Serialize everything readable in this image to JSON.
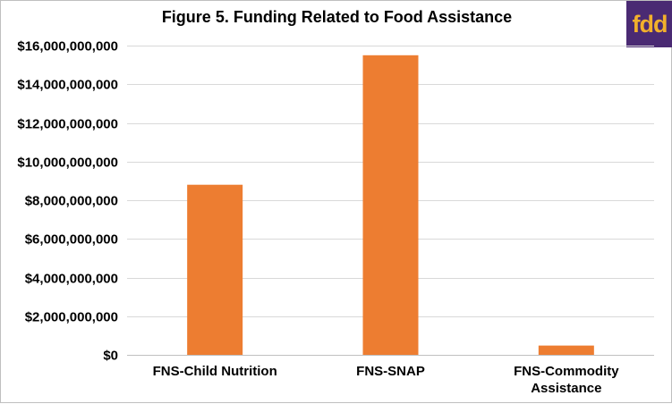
{
  "logo": {
    "text": "fdd"
  },
  "chart_data": {
    "type": "bar",
    "title": "Figure 5. Funding Related to Food Assistance",
    "categories": [
      [
        "FNS-Child Nutrition"
      ],
      [
        "FNS-SNAP"
      ],
      [
        "FNS-Commodity",
        "Assistance"
      ]
    ],
    "values": [
      8800000000,
      15500000000,
      480000000
    ],
    "ylim": [
      0,
      16000000000
    ],
    "yticks": [
      "$0",
      "$2,000,000,000",
      "$4,000,000,000",
      "$6,000,000,000",
      "$8,000,000,000",
      "$10,000,000,000",
      "$12,000,000,000",
      "$14,000,000,000",
      "$16,000,000,000"
    ],
    "bar_color": "#ed7d31",
    "grid_color": "#d9d9d9",
    "grid": true,
    "legend": "none"
  }
}
